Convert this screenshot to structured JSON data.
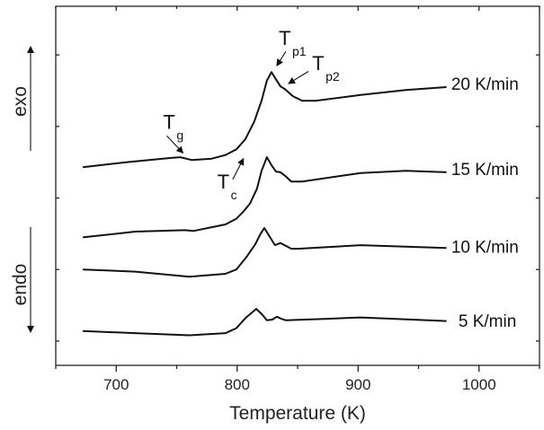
{
  "chart_data": {
    "type": "line",
    "title": "",
    "xlabel": "Temperature (K)",
    "ylabel": "",
    "xlim": [
      650,
      1050
    ],
    "ylim": [
      -0.34,
      4.68
    ],
    "xticks": [
      700,
      800,
      900,
      1000
    ],
    "xminor": [
      650,
      750,
      850,
      950,
      1050
    ],
    "yticks": [
      0,
      1,
      2,
      3,
      4
    ],
    "grid": false,
    "side_labels": {
      "exo": "exo",
      "endo": "endo"
    },
    "series": [
      {
        "name": "20 K/min",
        "label_at": [
          977,
          3.6
        ],
        "x": [
          672.4,
          708.2,
          745.5,
          753,
          762.7,
          779.1,
          790.3,
          799.3,
          806.7,
          814.2,
          820.2,
          824.6,
          828.4,
          832.1,
          835.8,
          839.6,
          846.3,
          853.7,
          864.9,
          902.2,
          939.6,
          973.1
        ],
        "y": [
          2.43,
          2.5,
          2.56,
          2.57,
          2.53,
          2.55,
          2.6,
          2.68,
          2.82,
          3.07,
          3.36,
          3.64,
          3.76,
          3.66,
          3.56,
          3.52,
          3.42,
          3.36,
          3.36,
          3.44,
          3.51,
          3.55
        ]
      },
      {
        "name": "15 K/min",
        "label_at": [
          977,
          2.41
        ],
        "x": [
          672.4,
          715.7,
          756.7,
          764.2,
          790.3,
          799.3,
          805.2,
          810.5,
          816.4,
          820.2,
          824.6,
          828.4,
          832.1,
          835.8,
          839.6,
          844.8,
          853.7,
          902.2,
          939.6,
          973.1
        ],
        "y": [
          1.45,
          1.53,
          1.55,
          1.54,
          1.63,
          1.71,
          1.81,
          1.92,
          2.13,
          2.38,
          2.57,
          2.46,
          2.37,
          2.36,
          2.31,
          2.23,
          2.23,
          2.35,
          2.38,
          2.36
        ]
      },
      {
        "name": "10 K/min",
        "label_at": [
          977,
          1.32
        ],
        "x": [
          672.4,
          715.7,
          760.5,
          790.3,
          799.3,
          807.5,
          814.9,
          819.4,
          822.4,
          826.1,
          831.3,
          835.8,
          840.3,
          844.8,
          850.0,
          902.2,
          973.1
        ],
        "y": [
          1.0,
          0.97,
          0.9,
          0.94,
          1.0,
          1.17,
          1.35,
          1.5,
          1.58,
          1.48,
          1.34,
          1.37,
          1.33,
          1.29,
          1.29,
          1.34,
          1.3
        ]
      },
      {
        "name": "5 K/min",
        "label_at": [
          983,
          0.29
        ],
        "x": [
          672.4,
          715.7,
          760.5,
          790.3,
          799.3,
          807.5,
          815.7,
          820.2,
          824.6,
          829.1,
          832.8,
          836.6,
          840.3,
          872.4,
          902.2,
          973.1
        ],
        "y": [
          0.14,
          0.11,
          0.08,
          0.11,
          0.18,
          0.33,
          0.45,
          0.38,
          0.29,
          0.3,
          0.34,
          0.31,
          0.29,
          0.31,
          0.33,
          0.28
        ]
      }
    ],
    "annotations": [
      {
        "text": "T",
        "sub": "g",
        "at": [
          744.0,
          3.07
        ],
        "arrow_from": [
          741.8,
          2.87
        ],
        "arrow_to": [
          755.2,
          2.63
        ]
      },
      {
        "text": "T",
        "sub": "c",
        "at": [
          788.8,
          2.23
        ],
        "arrow_from": [
          796.3,
          2.26
        ],
        "arrow_to": [
          805.2,
          2.55
        ]
      },
      {
        "text": "T",
        "sub": "p1",
        "at": [
          839.6,
          4.24
        ],
        "arrow_from": [
          840.3,
          4.05
        ],
        "arrow_to": [
          832.8,
          3.85
        ]
      },
      {
        "text": "T",
        "sub": "p2",
        "at": [
          867.2,
          3.89
        ],
        "arrow_from": [
          859.0,
          3.77
        ],
        "arrow_to": [
          842.5,
          3.6
        ]
      }
    ]
  }
}
